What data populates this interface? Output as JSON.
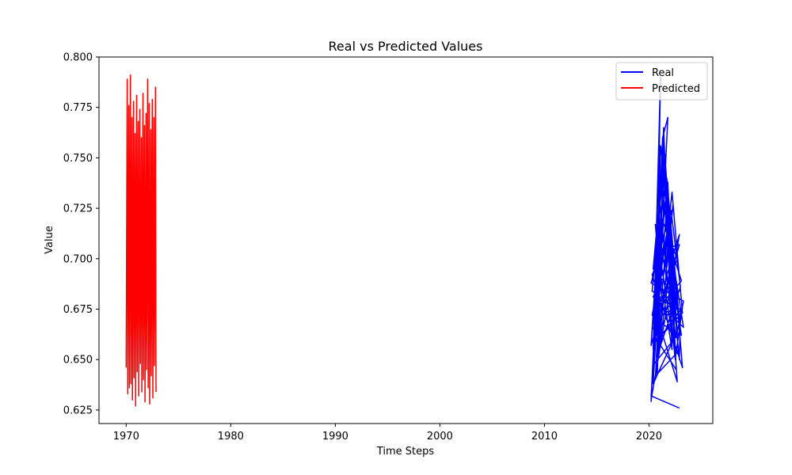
{
  "chart_data": {
    "type": "line",
    "title": "Real vs Predicted Values",
    "xlabel": "Time Steps",
    "ylabel": "Value",
    "xlim": [
      1967.4,
      2026.1
    ],
    "ylim": [
      0.6183,
      0.8
    ],
    "xticks": [
      1970,
      1980,
      1990,
      2000,
      2010,
      2020
    ],
    "xtick_labels": [
      "1970",
      "1980",
      "1990",
      "2000",
      "2010",
      "2020"
    ],
    "yticks": [
      0.625,
      0.65,
      0.675,
      0.7,
      0.725,
      0.75,
      0.775,
      0.8
    ],
    "ytick_labels": [
      "0.625",
      "0.650",
      "0.675",
      "0.700",
      "0.725",
      "0.750",
      "0.775",
      "0.800"
    ],
    "grid": false,
    "legend_position": "top-right",
    "series": [
      {
        "name": "Real",
        "color": "#0000ff",
        "x": [
          2020.2,
          2020.8,
          2021.1,
          2020.4,
          2021.3,
          2021.8,
          2020.6,
          2022.1,
          2021.5,
          2020.3,
          2022.4,
          2021.9,
          2020.9,
          2022.7,
          2021.2,
          2020.5,
          2023.0,
          2021.7,
          2020.7,
          2022.2,
          2021.4,
          2020.2,
          2022.9,
          2021.6,
          2020.9,
          2023.2,
          2022.5,
          2021.0,
          2020.4,
          2022.0,
          2021.4,
          2020.8,
          2022.8,
          2021.9,
          2020.3,
          2023.1,
          2022.3,
          2021.1,
          2020.6,
          2022.6,
          2021.8,
          2020.5,
          2023.3,
          2022.4,
          2021.3,
          2020.2,
          2022.9,
          2021.6,
          2020.7,
          2023.0,
          2022.1,
          2021.0,
          2020.4,
          2022.7,
          2021.5,
          2020.3,
          2023.2,
          2022.2,
          2021.2,
          2020.6,
          2022.5,
          2021.7,
          2020.8,
          2023.1,
          2022.0,
          2021.4,
          2020.5,
          2022.8,
          2021.9,
          2020.2,
          2023.3,
          2022.6,
          2021.1,
          2020.9,
          2022.3,
          2021.6,
          2020.4,
          2023.0,
          2022.9,
          2021.3,
          2020.7,
          2022.4,
          2021.8,
          2020.3,
          2023.2,
          2022.1,
          2021.0,
          2020.6,
          2022.7,
          2021.5,
          2020.2,
          2022.9
        ],
        "y": [
          0.629,
          0.7,
          0.79,
          0.655,
          0.76,
          0.77,
          0.64,
          0.7,
          0.745,
          0.665,
          0.68,
          0.69,
          0.675,
          0.7,
          0.72,
          0.648,
          0.664,
          0.74,
          0.705,
          0.655,
          0.765,
          0.63,
          0.712,
          0.69,
          0.66,
          0.676,
          0.65,
          0.73,
          0.695,
          0.685,
          0.76,
          0.643,
          0.654,
          0.715,
          0.672,
          0.689,
          0.702,
          0.756,
          0.661,
          0.645,
          0.738,
          0.68,
          0.666,
          0.696,
          0.749,
          0.657,
          0.707,
          0.705,
          0.651,
          0.686,
          0.724,
          0.693,
          0.638,
          0.664,
          0.752,
          0.684,
          0.673,
          0.733,
          0.682,
          0.717,
          0.652,
          0.726,
          0.669,
          0.662,
          0.698,
          0.744,
          0.658,
          0.671,
          0.72,
          0.688,
          0.679,
          0.661,
          0.708,
          0.654,
          0.727,
          0.697,
          0.681,
          0.675,
          0.65,
          0.736,
          0.662,
          0.678,
          0.711,
          0.692,
          0.646,
          0.715,
          0.699,
          0.674,
          0.639,
          0.727,
          0.632,
          0.626
        ]
      },
      {
        "name": "Predicted",
        "color": "#ff0000",
        "x": [
          1970.0,
          1970.1,
          1970.15,
          1970.25,
          1970.3,
          1970.4,
          1970.45,
          1970.55,
          1970.6,
          1970.7,
          1970.75,
          1970.85,
          1970.9,
          1971.0,
          1971.05,
          1971.15,
          1971.2,
          1971.3,
          1971.35,
          1971.45,
          1971.5,
          1971.6,
          1971.65,
          1971.75,
          1971.8,
          1971.9,
          1971.95,
          1972.05,
          1972.1,
          1972.2,
          1972.25,
          1972.35,
          1972.4,
          1972.5,
          1972.55,
          1972.65,
          1972.7,
          1972.8,
          1972.85
        ],
        "y": [
          0.646,
          0.789,
          0.633,
          0.776,
          0.636,
          0.791,
          0.638,
          0.77,
          0.63,
          0.778,
          0.641,
          0.762,
          0.627,
          0.781,
          0.644,
          0.768,
          0.632,
          0.774,
          0.648,
          0.76,
          0.634,
          0.782,
          0.64,
          0.766,
          0.629,
          0.772,
          0.645,
          0.789,
          0.636,
          0.777,
          0.628,
          0.764,
          0.642,
          0.779,
          0.631,
          0.77,
          0.647,
          0.785,
          0.634
        ]
      }
    ]
  }
}
